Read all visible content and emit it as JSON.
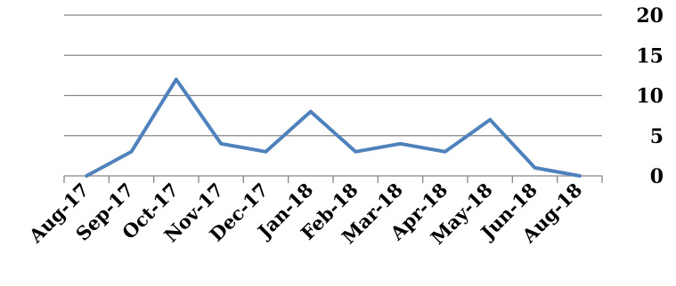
{
  "chart_data": {
    "type": "line",
    "categories": [
      "Aug-17",
      "Sep-17",
      "Oct-17",
      "Nov-17",
      "Dec-17",
      "Jan-18",
      "Feb-18",
      "Mar-18",
      "Apr-18",
      "May-18",
      "Jun-18",
      "Aug-18"
    ],
    "series": [
      {
        "values": [
          0,
          3,
          12,
          4,
          3,
          8,
          3,
          4,
          3,
          7,
          1,
          0
        ],
        "color": "#4F81BD"
      }
    ],
    "ylim": [
      0,
      20
    ],
    "yticks": [
      0,
      5,
      10,
      15,
      20
    ],
    "y_axis_side": "right",
    "grid": true,
    "legend": "none"
  }
}
